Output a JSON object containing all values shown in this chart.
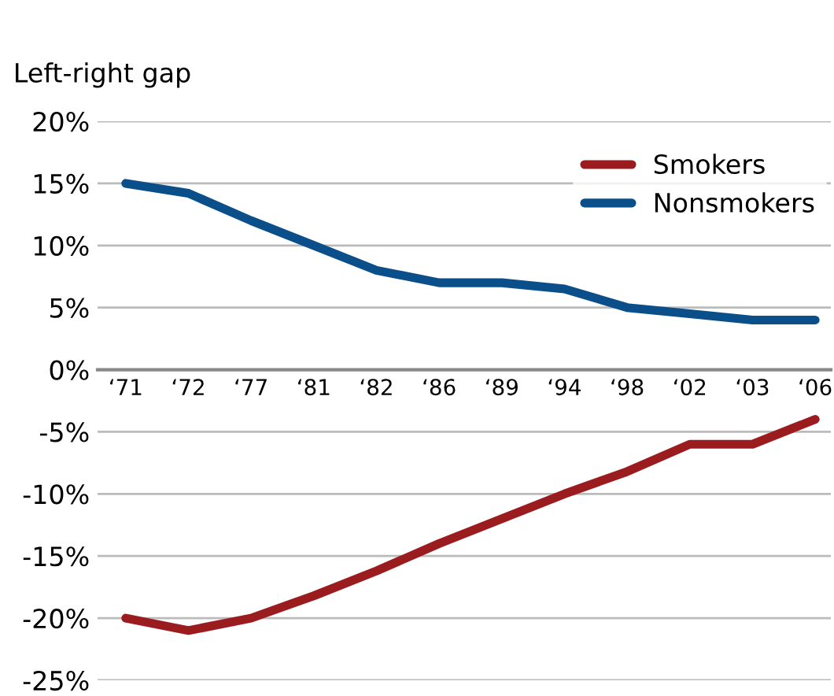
{
  "chart_data": {
    "type": "line",
    "ylabel": "Left-right gap",
    "categories": [
      "‘71",
      "‘72",
      "‘77",
      "‘81",
      "‘82",
      "‘86",
      "‘89",
      "‘94",
      "‘98",
      "‘02",
      "‘03",
      "‘06"
    ],
    "series": [
      {
        "name": "Smokers",
        "color": "#9b1c1f",
        "values": [
          -20,
          -21,
          -20,
          -18.2,
          -16.2,
          -14,
          -12,
          -10,
          -8.2,
          -6,
          -6,
          -4
        ]
      },
      {
        "name": "Nonsmokers",
        "color": "#0b4f8a",
        "values": [
          15,
          14.2,
          12,
          10,
          8,
          7,
          7,
          6.5,
          5,
          4.5,
          4,
          4
        ]
      }
    ],
    "ylim": [
      -25,
      20
    ],
    "yticks": [
      {
        "value": -25,
        "label": "-25%"
      },
      {
        "value": -20,
        "label": "-20%"
      },
      {
        "value": -15,
        "label": "-15%"
      },
      {
        "value": -10,
        "label": "-10%"
      },
      {
        "value": -5,
        "label": "-5%"
      },
      {
        "value": 0,
        "label": "0%"
      },
      {
        "value": 5,
        "label": "5%"
      },
      {
        "value": 10,
        "label": "10%"
      },
      {
        "value": 15,
        "label": "15%"
      },
      {
        "value": 20,
        "label": "20%"
      }
    ],
    "grid": "y",
    "legend": "top right",
    "marker": "none",
    "line_style": "solid"
  }
}
